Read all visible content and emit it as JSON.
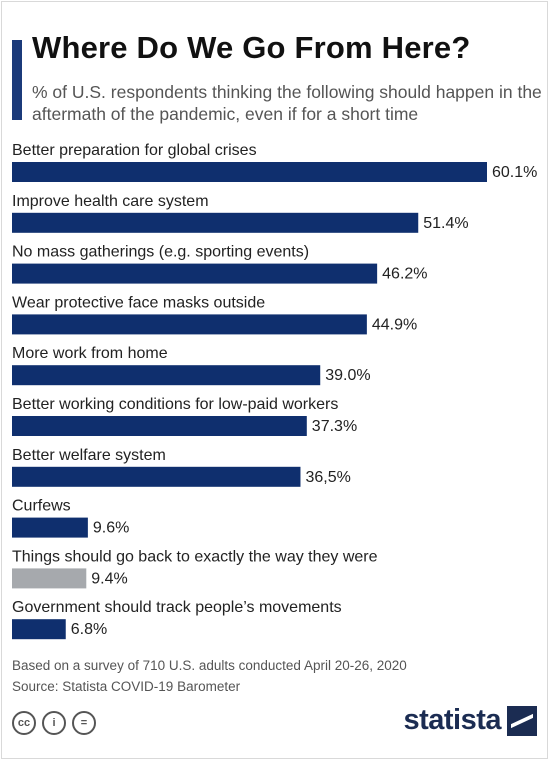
{
  "header": {
    "title": "Where Do We Go From Here?",
    "subtitle": "% of U.S. respondents thinking the following should happen in the aftermath of the pandemic, even if for a short time"
  },
  "chart_data": {
    "type": "bar",
    "orientation": "horizontal",
    "title": "Where Do We Go From Here?",
    "subtitle": "% of U.S. respondents thinking the following should happen in the aftermath of the pandemic, even if for a short time",
    "categories": [
      "Better preparation for global crises",
      "Improve health care system",
      "No mass gatherings (e.g. sporting events)",
      "Wear protective face masks outside",
      "More work from home",
      "Better working conditions for low-paid workers",
      "Better welfare system",
      "Curfews",
      "Things should go back to exactly the way they were",
      "Government should track people’s movements"
    ],
    "values": [
      60.1,
      51.4,
      46.2,
      44.9,
      39.0,
      37.3,
      36.5,
      9.6,
      9.4,
      6.8
    ],
    "value_labels": [
      "60.1%",
      "51.4%",
      "46.2%",
      "44.9%",
      "39.0%",
      "37.3%",
      "36,5%",
      "9.6%",
      "9.4%",
      "6.8%"
    ],
    "bar_colors": [
      "#0f2f6e",
      "#0f2f6e",
      "#0f2f6e",
      "#0f2f6e",
      "#0f2f6e",
      "#0f2f6e",
      "#0f2f6e",
      "#0f2f6e",
      "#a6a9ad",
      "#0f2f6e"
    ],
    "xlim": [
      0,
      60.1
    ],
    "grid": false,
    "legend": "none"
  },
  "footer": {
    "note": "Based on a survey of 710 U.S. adults conducted April 20-26, 2020",
    "source": "Source: Statista COVID-19 Barometer",
    "license_icons": [
      "cc-icon",
      "by-icon",
      "nd-icon"
    ],
    "license_glyphs": [
      "cc",
      "i",
      "="
    ],
    "brand": "statista"
  }
}
